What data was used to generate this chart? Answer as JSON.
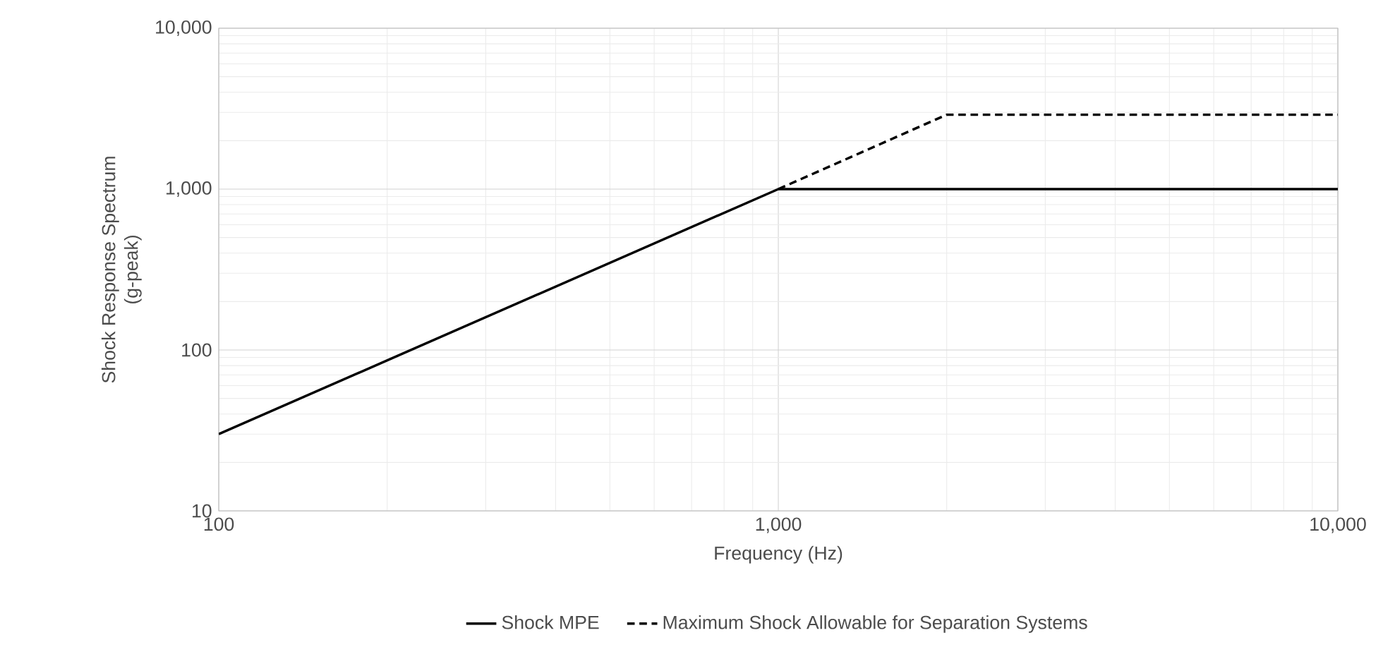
{
  "chart_data": {
    "type": "line",
    "xlabel": "Frequency (Hz)",
    "ylabel": "Shock Response Spectrum\n(g-peak)",
    "log": "xy",
    "grid": true,
    "legend": "bottom",
    "marker": "none",
    "xlim": [
      100,
      10000
    ],
    "xticks": [
      100,
      {
        "value": 1000,
        "label": "1,000"
      },
      {
        "value": 10000,
        "label": "10,000"
      }
    ],
    "ylim": [
      10,
      10000
    ],
    "yticks": [
      10,
      100,
      {
        "value": 1000,
        "label": "1,000"
      },
      {
        "value": 10000,
        "label": "10,000"
      }
    ],
    "series": [
      {
        "name": "Shock MPE",
        "color": "#000000",
        "line_style": "solid",
        "x": [
          100,
          1000,
          10000
        ],
        "values": [
          30,
          1000,
          1000
        ]
      },
      {
        "name": "Maximum Shock Allowable for Separation Systems",
        "color": "#000000",
        "line_style": "dashed",
        "x": [
          1000,
          2000,
          10000
        ],
        "values": [
          1000,
          2900,
          2900
        ]
      }
    ]
  }
}
